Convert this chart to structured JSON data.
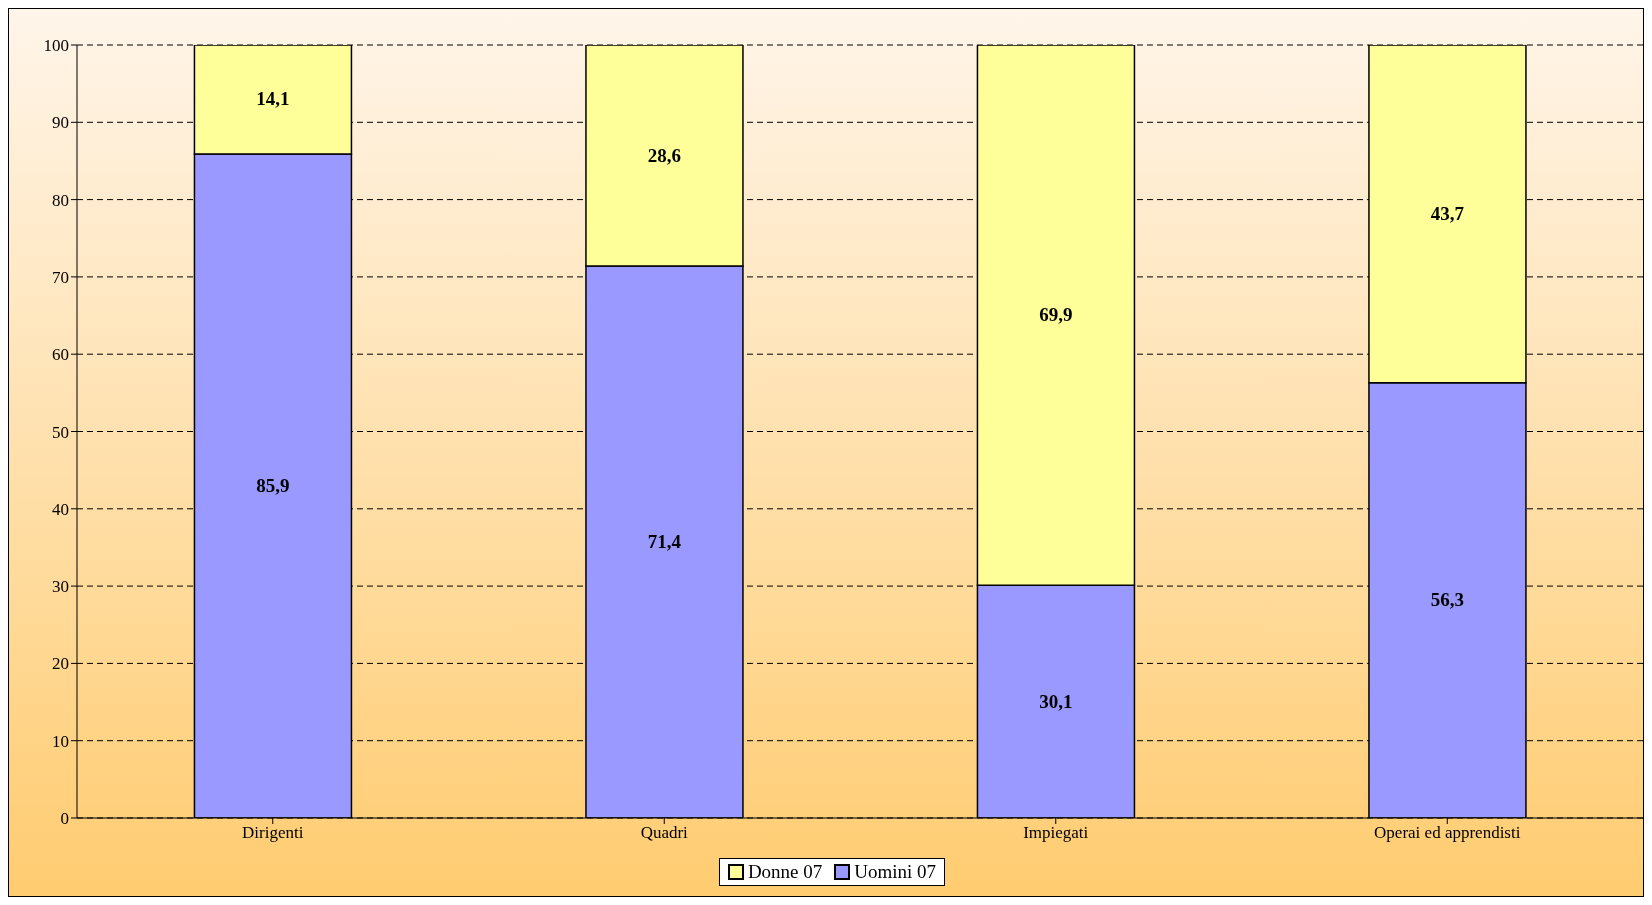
{
  "chart_data": {
    "type": "bar",
    "stacked": true,
    "categories": [
      "Dirigenti",
      "Quadri",
      "Impiegati",
      "Operai ed apprendisti"
    ],
    "series": [
      {
        "name": "Uomini 07",
        "color": "#9999ff",
        "values": [
          85.9,
          71.4,
          30.1,
          56.3
        ]
      },
      {
        "name": "Donne 07",
        "color": "#ffff99",
        "values": [
          14.1,
          28.6,
          69.9,
          43.7
        ]
      }
    ],
    "value_labels": [
      [
        "85,9",
        "71,4",
        "30,1",
        "56,3"
      ],
      [
        "14,1",
        "28,6",
        "69,9",
        "43,7"
      ]
    ],
    "ylim": [
      0,
      100
    ],
    "yticks": [
      0,
      10,
      20,
      30,
      40,
      50,
      60,
      70,
      80,
      90,
      100
    ],
    "grid": "y",
    "legend": "bottom"
  }
}
